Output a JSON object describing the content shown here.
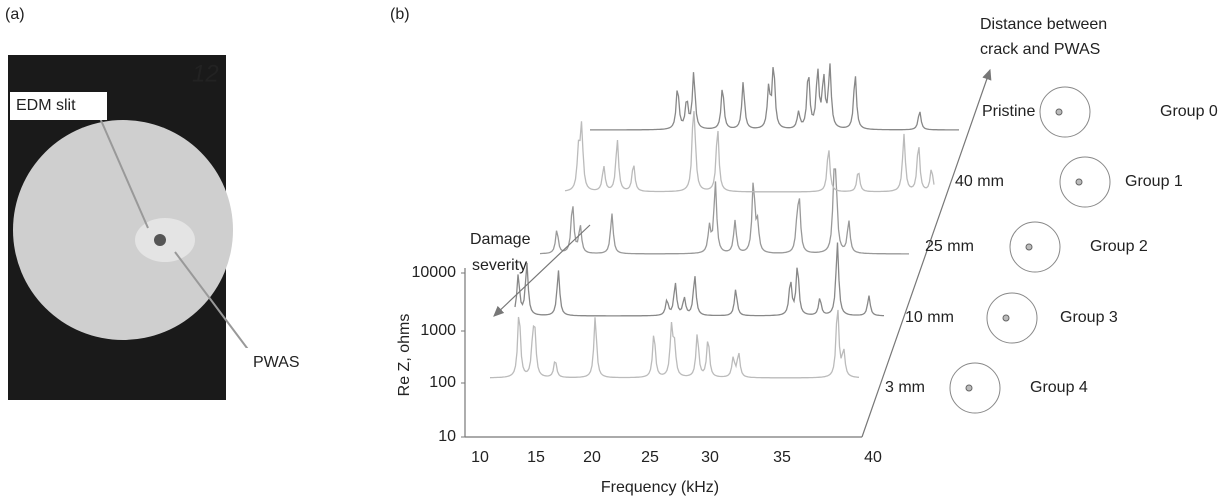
{
  "panel_a": {
    "label": "(a)",
    "sample_number": "12",
    "annotations": [
      "EDM slit",
      "PWAS"
    ]
  },
  "panel_b": {
    "label": "(b)",
    "y_axis": {
      "title": "Re Z, ohms",
      "ticks": [
        "10000",
        "1000",
        "100",
        "10"
      ]
    },
    "x_axis": {
      "title": "Frequency (kHz)",
      "ticks": [
        "10",
        "15",
        "20",
        "25",
        "30",
        "35",
        "40"
      ]
    },
    "damage_label": [
      "Damage",
      "severity"
    ],
    "distance_label": [
      "Distance between",
      "crack and PWAS"
    ],
    "groups": [
      {
        "distance": "Pristine",
        "name": "Group 0"
      },
      {
        "distance": "40 mm",
        "name": "Group 1"
      },
      {
        "distance": "25 mm",
        "name": "Group 2"
      },
      {
        "distance": "10 mm",
        "name": "Group 3"
      },
      {
        "distance": "3 mm",
        "name": "Group 4"
      }
    ]
  }
}
